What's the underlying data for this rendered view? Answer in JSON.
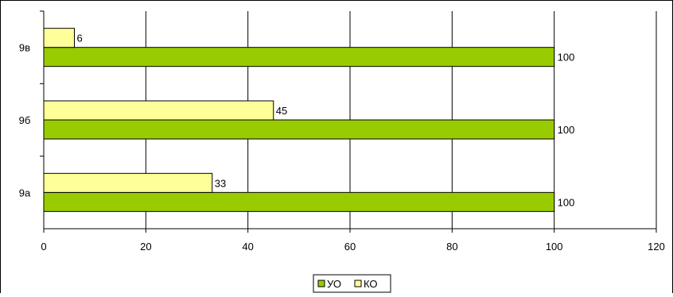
{
  "chart_data": {
    "type": "bar",
    "orientation": "horizontal",
    "categories": [
      "9а",
      "9б",
      "9в"
    ],
    "series": [
      {
        "name": "УО",
        "values": [
          100,
          100,
          100
        ],
        "color": "#99CC00"
      },
      {
        "name": "КО",
        "values": [
          33,
          45,
          6
        ],
        "color": "#FFFF99"
      }
    ],
    "xlim": [
      0,
      120
    ],
    "xticks": [
      0,
      20,
      40,
      60,
      80,
      100,
      120
    ],
    "grid": true,
    "legend_position": "bottom-center",
    "data_labels": true
  }
}
